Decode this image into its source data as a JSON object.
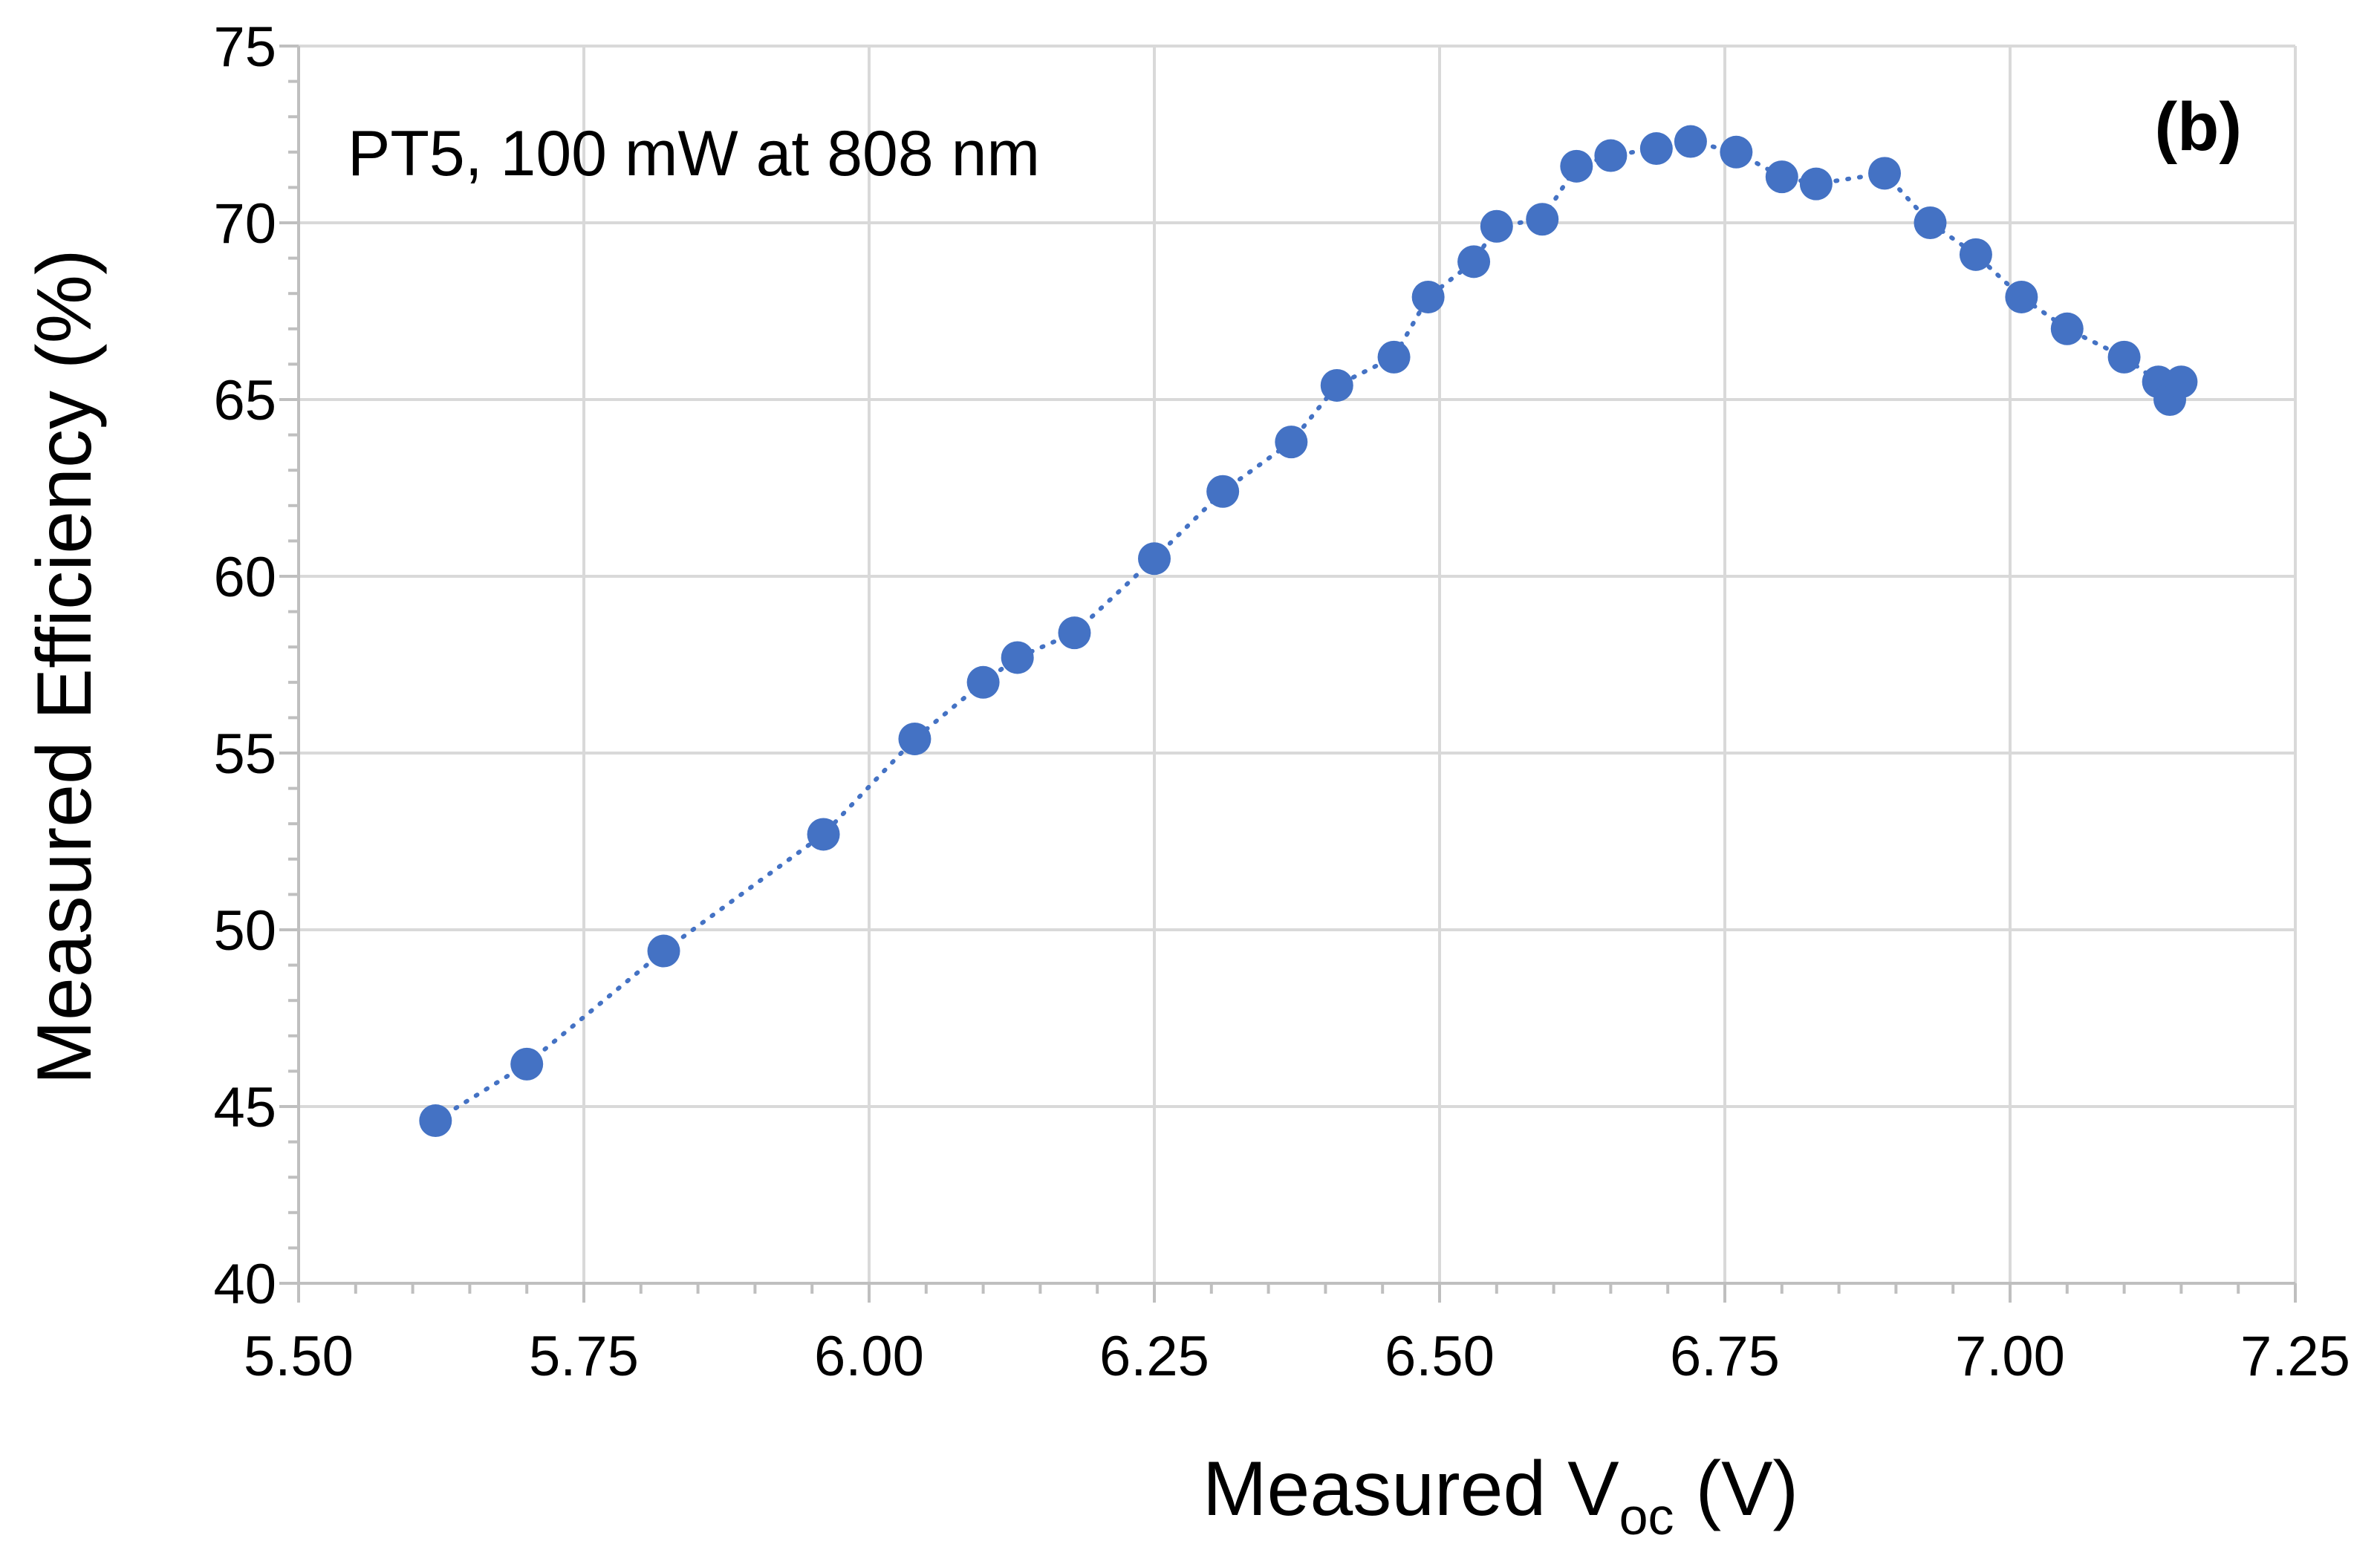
{
  "chart_data": {
    "type": "scatter",
    "title": "",
    "panel_label": "(b)",
    "annotation": "PT5, 100 mW at 808 nm",
    "xlabel": {
      "main": "Measured V",
      "sub": "oc",
      "suffix": " (V)"
    },
    "ylabel": "Measured Efficiency (%)",
    "xlim": [
      5.5,
      7.25
    ],
    "ylim": [
      40,
      75
    ],
    "xticks": [
      "5.50",
      "5.75",
      "6.00",
      "6.25",
      "6.50",
      "6.75",
      "7.00",
      "7.25"
    ],
    "yticks": [
      "40",
      "45",
      "50",
      "55",
      "60",
      "65",
      "70",
      "75"
    ],
    "grid": true,
    "marker_color": "#4472c4",
    "line_style": "dotted",
    "series": [
      {
        "name": "PT5",
        "x": [
          5.62,
          5.7,
          5.82,
          5.96,
          6.04,
          6.1,
          6.13,
          6.18,
          6.25,
          6.31,
          6.37,
          6.41,
          6.46,
          6.49,
          6.53,
          6.55,
          6.59,
          6.62,
          6.65,
          6.69,
          6.72,
          6.76,
          6.8,
          6.83,
          6.89,
          6.93,
          6.97,
          7.01,
          7.05,
          7.1,
          7.13,
          7.14,
          7.15
        ],
        "y": [
          44.6,
          46.2,
          49.4,
          52.7,
          55.4,
          57.0,
          57.7,
          58.4,
          60.5,
          62.4,
          63.8,
          65.4,
          66.2,
          67.9,
          68.9,
          69.9,
          70.1,
          71.6,
          71.9,
          72.1,
          72.3,
          72.0,
          71.3,
          71.1,
          71.4,
          70.0,
          69.1,
          67.9,
          67.0,
          66.2,
          65.5,
          65.0,
          65.5
        ]
      }
    ]
  }
}
